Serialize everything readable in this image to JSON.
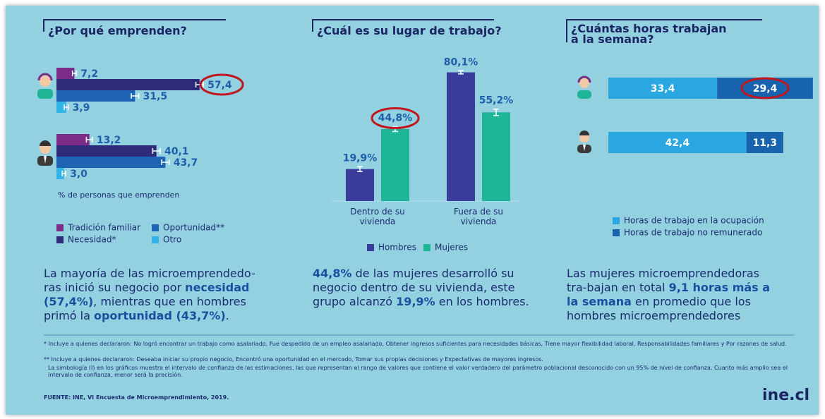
{
  "chart_data": [
    {
      "type": "bar",
      "orientation": "horizontal",
      "title": "¿Por qué emprenden?",
      "categories": [
        null,
        null
      ],
      "xlabel": "% de personas que emprenden",
      "xlim": [
        0,
        60
      ],
      "series": [
        {
          "name": "Tradición familiar",
          "color": "#7a2c86",
          "values": [
            7.2,
            13.2
          ],
          "value_labels": [
            "7,2",
            "13,2"
          ],
          "errors": [
            0.8,
            1.2
          ]
        },
        {
          "name": "Necesidad*",
          "color": "#2e2b7a",
          "values": [
            57.4,
            40.1
          ],
          "value_labels": [
            "57,4",
            "40,1"
          ],
          "errors": [
            1.5,
            1.5
          ]
        },
        {
          "name": "Oportunidad**",
          "color": "#1f64b4",
          "values": [
            31.5,
            43.7
          ],
          "value_labels": [
            "31,5",
            "43,7"
          ],
          "errors": [
            1.5,
            1.5
          ]
        },
        {
          "name": "Otro",
          "color": "#33b4e6",
          "values": [
            3.9,
            3.0
          ],
          "value_labels": [
            "3,9",
            "3,0"
          ],
          "errors": [
            0.8,
            0.7
          ]
        }
      ],
      "highlight": {
        "series": 1,
        "index": 0
      },
      "summary": [
        {
          "text": "La mayoría de las microemprendedo-ras inició su negocio por ",
          "bold": false
        },
        {
          "text": "necesidad (57,4%)",
          "bold": true
        },
        {
          "text": ", mientras que en hombres primó la ",
          "bold": false
        },
        {
          "text": "oportunidad (43,7%)",
          "bold": true
        },
        {
          "text": ".",
          "bold": false
        }
      ]
    },
    {
      "type": "bar",
      "title": "¿Cuál es su lugar de trabajo?",
      "categories": [
        "Dentro de su vivienda",
        "Fuera de su vivienda"
      ],
      "ylim": [
        0,
        90
      ],
      "series": [
        {
          "name": "Hombres",
          "color": "#3a3c9c",
          "values": [
            19.9,
            80.1
          ],
          "value_labels": [
            "19,9%",
            "80,1%"
          ],
          "errors": [
            1.5,
            1.0
          ]
        },
        {
          "name": "Mujeres",
          "color": "#1fb597",
          "values": [
            44.8,
            55.2
          ],
          "value_labels": [
            "44,8%",
            "55,2%"
          ],
          "errors": [
            1.5,
            2.0
          ]
        }
      ],
      "highlight": {
        "series": 1,
        "index": 0
      },
      "summary": [
        {
          "text": "44,8%",
          "bold": true
        },
        {
          "text": " de las mujeres desarrolló su negocio dentro de su vivienda, este grupo alcanzó ",
          "bold": false
        },
        {
          "text": "19,9%",
          "bold": true
        },
        {
          "text": " en los hombres.",
          "bold": false
        }
      ]
    },
    {
      "type": "stacked_bar",
      "orientation": "horizontal",
      "title": "¿Cuántas horas trabajan\na la semana?",
      "categories": [
        null,
        null
      ],
      "xlim": [
        0,
        65
      ],
      "series": [
        {
          "name": "Horas de trabajo en la ocupación",
          "color": "#2aa7e1",
          "values": [
            33.4,
            42.4
          ],
          "value_labels": [
            "33,4",
            "42,4"
          ]
        },
        {
          "name": "Horas de trabajo no remunerado",
          "color": "#1763ad",
          "values": [
            29.4,
            11.3
          ],
          "value_labels": [
            "29,4",
            "11,3"
          ]
        }
      ],
      "highlight": {
        "series": 1,
        "index": 0
      },
      "summary": [
        {
          "text": "Las mujeres microemprendedoras tra-bajan en total ",
          "bold": false
        },
        {
          "text": "9,1 horas más a la semana",
          "bold": true
        },
        {
          "text": " en promedio que los hombres microemprendedores",
          "bold": false
        }
      ]
    }
  ],
  "notes": [
    "* Incluye a quienes declararon: No logró encontrar un trabajo como asalariado, Fue despedido de un empleo asalariado, Obtener ingresos suficientes para necesidades básicas, Tiene mayor flexibilidad laboral, Responsabilidades familiares y Por razones de salud.",
    "** Incluye a quienes declararon: Deseaba iniciar su propio negocio, Encontró una oportunidad en el mercado, Tomar sus propias decisiones y Expectativas de mayores ingresos.",
    "La simbología (I) en los gráficos muestra el intervalo de confianza de las estimaciones, las que representan el rango de valores que contiene el valor verdadero del parámetro poblacional desconocido con un 95% de nivel de confianza. Cuanto más amplio sea el intervalo de confianza, menor será la precisión."
  ],
  "source": "FUENTE: INE, VI Encuesta de Microemprendimiento, 2019.",
  "brand": "ine.cl"
}
